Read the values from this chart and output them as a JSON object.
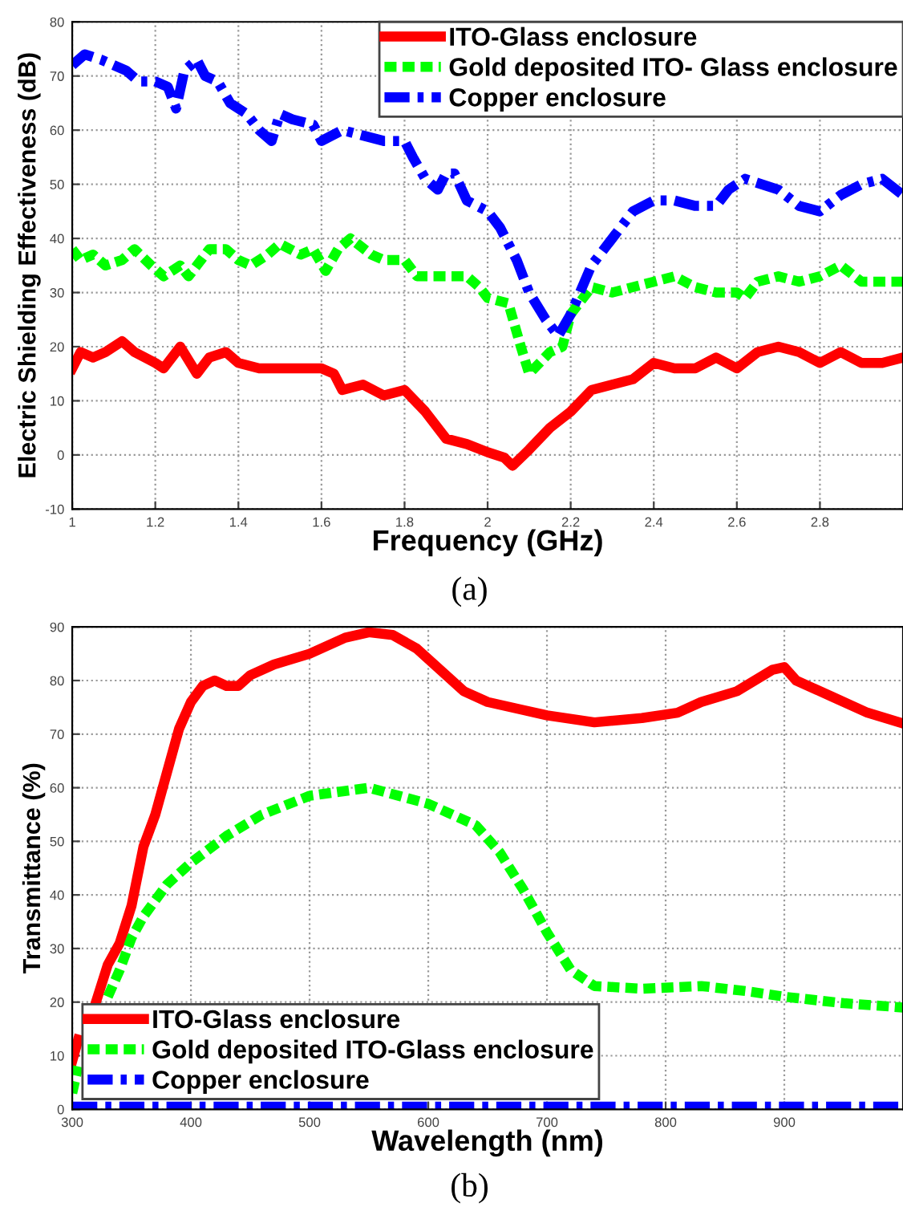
{
  "chart_data": [
    {
      "type": "line",
      "xlabel": "Frequency (GHz)",
      "ylabel": "Electric Shielding Effectiveness (dB)",
      "annotations": [
        "(a)"
      ],
      "xlim": [
        1,
        3
      ],
      "ylim": [
        -10,
        80
      ],
      "xticks": [
        1,
        1.2,
        1.4,
        1.6,
        1.8,
        2,
        2.2,
        2.4,
        2.6,
        2.8
      ],
      "yticks": [
        -10,
        0,
        10,
        20,
        30,
        40,
        50,
        60,
        70,
        80
      ],
      "grid": true,
      "legend": "top right",
      "series": [
        {
          "name": "ITO-Glass enclosure",
          "color": "#ff0000",
          "line_style": "solid",
          "x": [
            1.0,
            1.02,
            1.05,
            1.08,
            1.12,
            1.15,
            1.2,
            1.22,
            1.26,
            1.3,
            1.33,
            1.37,
            1.4,
            1.45,
            1.5,
            1.55,
            1.6,
            1.63,
            1.65,
            1.7,
            1.75,
            1.8,
            1.85,
            1.9,
            1.95,
            2.0,
            2.04,
            2.06,
            2.1,
            2.15,
            2.2,
            2.25,
            2.3,
            2.35,
            2.4,
            2.45,
            2.5,
            2.55,
            2.6,
            2.65,
            2.7,
            2.75,
            2.8,
            2.85,
            2.9,
            2.95,
            3.0
          ],
          "values": [
            16,
            19,
            18,
            19,
            21,
            19,
            17,
            16,
            20,
            15,
            18,
            19,
            17,
            16,
            16,
            16,
            16,
            15,
            12,
            13,
            11,
            12,
            8,
            3,
            2,
            0.5,
            -0.5,
            -2,
            1,
            5,
            8,
            12,
            13,
            14,
            17,
            16,
            16,
            18,
            16,
            19,
            20,
            19,
            17,
            19,
            17,
            17,
            18
          ]
        },
        {
          "name": "Gold deposited ITO- Glass enclosure",
          "color": "#00ff00",
          "line_style": "dashed",
          "x": [
            1.0,
            1.02,
            1.05,
            1.08,
            1.12,
            1.15,
            1.19,
            1.22,
            1.26,
            1.28,
            1.3,
            1.33,
            1.37,
            1.4,
            1.43,
            1.47,
            1.5,
            1.55,
            1.58,
            1.61,
            1.64,
            1.67,
            1.72,
            1.75,
            1.8,
            1.83,
            1.9,
            1.95,
            1.98,
            2.0,
            2.05,
            2.08,
            2.1,
            2.15,
            2.18,
            2.2,
            2.25,
            2.3,
            2.35,
            2.4,
            2.45,
            2.5,
            2.55,
            2.6,
            2.62,
            2.65,
            2.7,
            2.75,
            2.8,
            2.85,
            2.9,
            3.0
          ],
          "values": [
            38,
            36,
            37,
            35,
            36,
            38,
            35,
            33,
            35,
            33,
            35,
            38,
            38,
            36,
            35,
            37,
            39,
            37,
            38,
            34,
            38,
            40,
            37,
            36,
            36,
            33,
            33,
            33,
            31,
            29,
            28,
            20,
            15,
            19,
            20,
            26,
            31,
            30,
            31,
            32,
            33,
            31,
            30,
            30,
            29,
            32,
            33,
            32,
            33,
            35,
            32,
            32
          ]
        },
        {
          "name": "Copper enclosure",
          "color": "#0000ff",
          "line_style": "dashdot",
          "x": [
            1.0,
            1.03,
            1.07,
            1.1,
            1.13,
            1.16,
            1.2,
            1.23,
            1.25,
            1.27,
            1.3,
            1.32,
            1.35,
            1.38,
            1.42,
            1.45,
            1.48,
            1.5,
            1.53,
            1.58,
            1.6,
            1.65,
            1.7,
            1.75,
            1.8,
            1.82,
            1.85,
            1.88,
            1.9,
            1.92,
            1.95,
            2.0,
            2.03,
            2.07,
            2.1,
            2.14,
            2.17,
            2.2,
            2.25,
            2.3,
            2.35,
            2.4,
            2.45,
            2.5,
            2.55,
            2.58,
            2.62,
            2.7,
            2.75,
            2.8,
            2.85,
            2.9,
            2.95,
            3.0
          ],
          "values": [
            72,
            74,
            73,
            72,
            71,
            69,
            69,
            68,
            64,
            71,
            73,
            70,
            69,
            65,
            63,
            60,
            58,
            63,
            62,
            61,
            58,
            60,
            59,
            58,
            58,
            55,
            51,
            49,
            52,
            52,
            47,
            45,
            42,
            36,
            30,
            25,
            22,
            26,
            35,
            40,
            45,
            47,
            47,
            46,
            46,
            49,
            51,
            49,
            46,
            45,
            48,
            50,
            51,
            48
          ]
        }
      ]
    },
    {
      "type": "line",
      "xlabel": "Wavelength (nm)",
      "ylabel": "Transmittance (%)",
      "annotations": [
        "(b)"
      ],
      "xlim": [
        300,
        1000
      ],
      "ylim": [
        0,
        90
      ],
      "xticks": [
        300,
        400,
        500,
        600,
        700,
        800,
        900
      ],
      "yticks": [
        0,
        10,
        20,
        30,
        40,
        50,
        60,
        70,
        80,
        90
      ],
      "grid": true,
      "legend": "bottom left",
      "series": [
        {
          "name": "ITO-Glass enclosure",
          "color": "#ff0000",
          "line_style": "solid",
          "x": [
            300,
            305,
            310,
            320,
            330,
            340,
            350,
            360,
            370,
            380,
            390,
            400,
            410,
            420,
            430,
            440,
            450,
            470,
            500,
            530,
            550,
            570,
            590,
            610,
            630,
            650,
            680,
            700,
            740,
            780,
            810,
            830,
            860,
            890,
            900,
            910,
            940,
            970,
            1000
          ],
          "values": [
            9,
            13,
            null,
            20,
            27,
            31,
            38,
            49,
            55,
            63,
            71,
            76,
            79,
            80,
            79,
            79,
            81,
            83,
            85,
            88,
            89,
            88.5,
            86,
            82,
            78,
            76,
            74.5,
            73.5,
            72.2,
            73,
            74,
            76,
            78,
            82,
            82.5,
            80,
            77,
            74,
            72
          ]
        },
        {
          "name": "Gold deposited ITO-Glass enclosure",
          "color": "#00ff00",
          "line_style": "dashed",
          "x": [
            300,
            305,
            310,
            320,
            330,
            340,
            350,
            360,
            380,
            400,
            430,
            460,
            500,
            550,
            600,
            640,
            660,
            680,
            700,
            720,
            740,
            780,
            830,
            870,
            900,
            950,
            1000
          ],
          "values": [
            3,
            8,
            null,
            null,
            21,
            26,
            32,
            36,
            42,
            46,
            51,
            55,
            58.5,
            60,
            57,
            53,
            48,
            41,
            33,
            26,
            23,
            22.5,
            23,
            22,
            21,
            19.8,
            19
          ]
        },
        {
          "name": "Copper enclosure",
          "color": "#0000ff",
          "line_style": "dashdot",
          "x": [
            300,
            1000
          ],
          "values": [
            0.5,
            0.5
          ]
        }
      ]
    }
  ]
}
